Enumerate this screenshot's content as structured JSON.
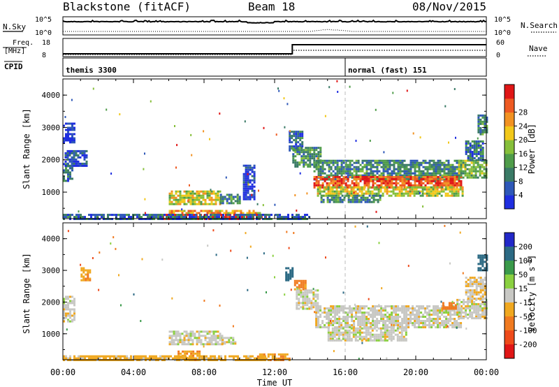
{
  "header": {
    "radar": "Blackstone (fitACF)",
    "beam": "Beam 18",
    "date": "08/Nov/2015"
  },
  "top_panels": {
    "nsky_label": "N.Sky",
    "nsky_ticks": [
      "10^5",
      "10^0"
    ],
    "nsearch_label": "N.Search",
    "nsearch_ticks": [
      "10^5",
      "10^0"
    ],
    "freq_label_1": "Freq.",
    "freq_label_2": "[MHz]",
    "freq_ticks": [
      "18",
      "8"
    ],
    "nave_label": "Nave",
    "nave_ticks": [
      "60",
      "0"
    ],
    "cpid_label": "CPID",
    "cpid_segments": [
      {
        "label": "themis 3300",
        "start_hour": 0
      },
      {
        "label": "normal (fast) 151",
        "start_hour": 16
      }
    ]
  },
  "chart_data": [
    {
      "type": "heatmap",
      "name": "power",
      "ylabel": "Slant Range [km]",
      "yticks": [
        "1000",
        "2000",
        "3000",
        "4000"
      ],
      "ylim": [
        180,
        4500
      ],
      "xlim": [
        0,
        24
      ],
      "colorbar": {
        "label": "Power [dB]",
        "ticks": [
          "4",
          "8",
          "12",
          "16",
          "20",
          "24",
          "28"
        ],
        "colors": [
          "#1f2ee0",
          "#2e58b8",
          "#3a7a66",
          "#4f9c4a",
          "#86bf3a",
          "#f2c81a",
          "#f29222",
          "#ee5a22",
          "#e01616"
        ]
      },
      "echo_regions": [
        {
          "t0": 0.0,
          "t1": 0.5,
          "r0": 1350,
          "r1": 1900,
          "level": 0.25
        },
        {
          "t0": 0.1,
          "t1": 1.3,
          "r0": 1800,
          "r1": 2300,
          "level": 0.15
        },
        {
          "t0": 0.0,
          "t1": 0.6,
          "r0": 2550,
          "r1": 3150,
          "level": 0.05
        },
        {
          "t0": 6.0,
          "t1": 8.9,
          "r0": 600,
          "r1": 1050,
          "level": 0.55
        },
        {
          "t0": 8.9,
          "t1": 10.0,
          "r0": 650,
          "r1": 950,
          "level": 0.3
        },
        {
          "t0": 6.0,
          "t1": 11.2,
          "r0": 330,
          "r1": 450,
          "level": 0.7
        },
        {
          "t0": 5.5,
          "t1": 11.5,
          "r0": 180,
          "r1": 330,
          "level": 1.0
        },
        {
          "t0": 0.0,
          "t1": 14.0,
          "r0": 180,
          "r1": 330,
          "level": 0.2
        },
        {
          "t0": 10.2,
          "t1": 10.8,
          "r0": 750,
          "r1": 1850,
          "level": 0.1
        },
        {
          "t0": 12.8,
          "t1": 13.6,
          "r0": 2300,
          "r1": 2900,
          "level": 0.2
        },
        {
          "t0": 13.0,
          "t1": 14.6,
          "r0": 1800,
          "r1": 2400,
          "level": 0.35
        },
        {
          "t0": 14.2,
          "t1": 22.6,
          "r0": 1400,
          "r1": 2000,
          "level": 0.3
        },
        {
          "t0": 14.2,
          "t1": 22.6,
          "r0": 1150,
          "r1": 1500,
          "level": 0.85
        },
        {
          "t0": 14.4,
          "t1": 22.6,
          "r0": 900,
          "r1": 1180,
          "level": 0.55
        },
        {
          "t0": 14.6,
          "t1": 18.0,
          "r0": 700,
          "r1": 920,
          "level": 0.3
        },
        {
          "t0": 22.4,
          "t1": 24.0,
          "r0": 1450,
          "r1": 2000,
          "level": 0.45
        },
        {
          "t0": 22.8,
          "t1": 23.8,
          "r0": 2000,
          "r1": 2600,
          "level": 0.25
        },
        {
          "t0": 23.5,
          "t1": 24.0,
          "r0": 2800,
          "r1": 3400,
          "level": 0.3
        }
      ]
    },
    {
      "type": "heatmap",
      "name": "velocity",
      "ylabel": "Slant Range [km]",
      "yticks": [
        "1000",
        "2000",
        "3000",
        "4000"
      ],
      "ylim": [
        180,
        4500
      ],
      "xlim": [
        0,
        24
      ],
      "xlabel": "Time UT",
      "xticks": [
        "00:00",
        "04:00",
        "08:00",
        "12:00",
        "16:00",
        "20:00",
        "00:00"
      ],
      "colorbar": {
        "label": "Velocity [m s^-1]",
        "ticks": [
          "200",
          "100",
          "50",
          "15",
          "-15",
          "-50",
          "-100",
          "-200"
        ],
        "colors": [
          "#2228c8",
          "#2c6a84",
          "#3a9a4a",
          "#8ad040",
          "#c8c8c4",
          "#f0a820",
          "#f07a20",
          "#ee4a1a",
          "#e01616"
        ]
      },
      "echo_regions": [
        {
          "t0": 0.0,
          "t1": 0.6,
          "r0": 1400,
          "r1": 2200,
          "vel": 0
        },
        {
          "t0": 1.0,
          "t1": 1.5,
          "r0": 2700,
          "r1": 3100,
          "vel": -40
        },
        {
          "t0": 6.0,
          "t1": 9.0,
          "r0": 650,
          "r1": 1100,
          "vel": 0
        },
        {
          "t0": 9.0,
          "t1": 9.8,
          "r0": 700,
          "r1": 900,
          "vel": 0
        },
        {
          "t0": 0.0,
          "t1": 11.5,
          "r0": 180,
          "r1": 320,
          "vel": -30
        },
        {
          "t0": 6.5,
          "t1": 7.8,
          "r0": 180,
          "r1": 470,
          "vel": -45
        },
        {
          "t0": 11.0,
          "t1": 12.8,
          "r0": 180,
          "r1": 380,
          "vel": -40
        },
        {
          "t0": 12.6,
          "t1": 13.0,
          "r0": 2700,
          "r1": 3100,
          "vel": 150
        },
        {
          "t0": 13.1,
          "t1": 13.7,
          "r0": 2400,
          "r1": 2700,
          "vel": -60
        },
        {
          "t0": 13.2,
          "t1": 14.5,
          "r0": 1800,
          "r1": 2400,
          "vel": 0
        },
        {
          "t0": 14.3,
          "t1": 22.5,
          "r0": 1200,
          "r1": 1900,
          "vel": 0
        },
        {
          "t0": 15.0,
          "t1": 19.5,
          "r0": 800,
          "r1": 1200,
          "vel": 0
        },
        {
          "t0": 22.3,
          "t1": 24.0,
          "r0": 1500,
          "r1": 2100,
          "vel": 0
        },
        {
          "t0": 22.8,
          "t1": 23.9,
          "r0": 2100,
          "r1": 2800,
          "vel": -10
        },
        {
          "t0": 21.5,
          "t1": 22.3,
          "r0": 1800,
          "r1": 2000,
          "vel": -80
        },
        {
          "t0": 23.5,
          "t1": 24.0,
          "r0": 3000,
          "r1": 3500,
          "vel": 180
        }
      ]
    }
  ]
}
